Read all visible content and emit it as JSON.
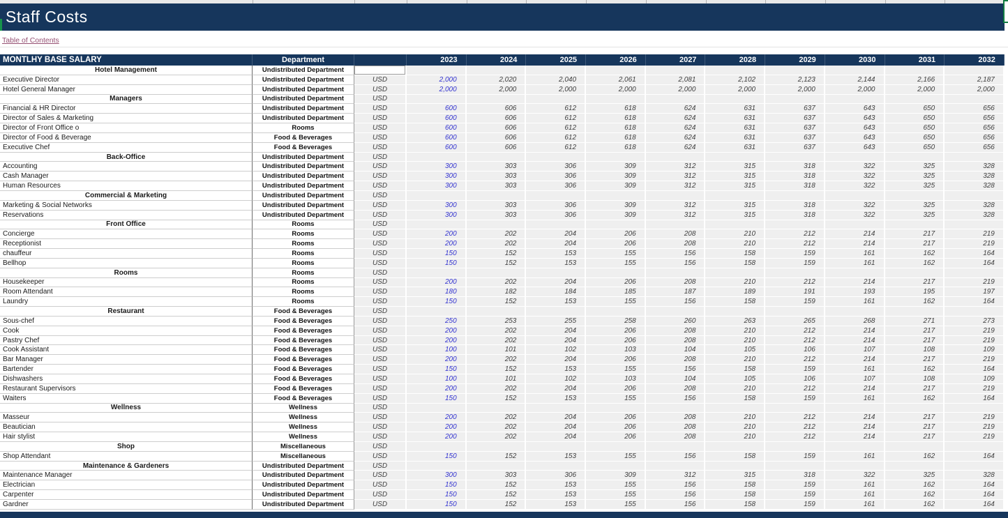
{
  "page_title": "Staff Costs",
  "toc_link_label": "Table of Contents",
  "colors": {
    "header_navy": "#16365c",
    "followed_link": "#954f72",
    "input_blue": "#3434d0",
    "cell_fill": "#efefef",
    "selection_green": "#107c41"
  },
  "table": {
    "title": "MONTLHY BASE SALARY",
    "department_header": "Department",
    "years": [
      "2023",
      "2024",
      "2025",
      "2026",
      "2027",
      "2028",
      "2029",
      "2030",
      "2031",
      "2032"
    ],
    "currency_label": "USD",
    "series": {
      "s2000g": [
        "2,000",
        "2,020",
        "2,040",
        "2,061",
        "2,081",
        "2,102",
        "2,123",
        "2,144",
        "2,166",
        "2,187"
      ],
      "s2000f": [
        "2,000",
        "2,000",
        "2,000",
        "2,000",
        "2,000",
        "2,000",
        "2,000",
        "2,000",
        "2,000",
        "2,000"
      ],
      "s600": [
        "600",
        "606",
        "612",
        "618",
        "624",
        "631",
        "637",
        "643",
        "650",
        "656"
      ],
      "s300": [
        "300",
        "303",
        "306",
        "309",
        "312",
        "315",
        "318",
        "322",
        "325",
        "328"
      ],
      "s250": [
        "250",
        "253",
        "255",
        "258",
        "260",
        "263",
        "265",
        "268",
        "271",
        "273"
      ],
      "s200": [
        "200",
        "202",
        "204",
        "206",
        "208",
        "210",
        "212",
        "214",
        "217",
        "219"
      ],
      "s180": [
        "180",
        "182",
        "184",
        "185",
        "187",
        "189",
        "191",
        "193",
        "195",
        "197"
      ],
      "s150": [
        "150",
        "152",
        "153",
        "155",
        "156",
        "158",
        "159",
        "161",
        "162",
        "164"
      ],
      "s100": [
        "100",
        "101",
        "102",
        "103",
        "104",
        "105",
        "106",
        "107",
        "108",
        "109"
      ]
    },
    "rows": [
      {
        "type": "category",
        "label": "Hotel Management",
        "department": "Undistributed Department",
        "currency": "",
        "series": null
      },
      {
        "type": "item",
        "label": "Executive Director",
        "department": "Undistributed Department",
        "currency": "USD",
        "series": "s2000g"
      },
      {
        "type": "item",
        "label": "Hotel General Manager",
        "department": "Undistributed Department",
        "currency": "USD",
        "series": "s2000f"
      },
      {
        "type": "category",
        "label": "Managers",
        "department": "Undistributed Department",
        "currency": "USD",
        "series": null
      },
      {
        "type": "item",
        "label": "Financial & HR Director",
        "department": "Undistributed Department",
        "currency": "USD",
        "series": "s600"
      },
      {
        "type": "item",
        "label": "Director of Sales & Marketing",
        "department": "Undistributed Department",
        "currency": "USD",
        "series": "s600"
      },
      {
        "type": "item",
        "label": "Director of Front Office o",
        "department": "Rooms",
        "currency": "USD",
        "series": "s600"
      },
      {
        "type": "item",
        "label": "Director of Food & Beverage",
        "department": "Food & Beverages",
        "currency": "USD",
        "series": "s600"
      },
      {
        "type": "item",
        "label": "Executive Chef",
        "department": "Food & Beverages",
        "currency": "USD",
        "series": "s600"
      },
      {
        "type": "category",
        "label": "Back-Office",
        "department": "Undistributed Department",
        "currency": "USD",
        "series": null
      },
      {
        "type": "item",
        "label": "Accounting",
        "department": "Undistributed Department",
        "currency": "USD",
        "series": "s300"
      },
      {
        "type": "item",
        "label": "Cash Manager",
        "department": "Undistributed Department",
        "currency": "USD",
        "series": "s300"
      },
      {
        "type": "item",
        "label": "Human Resources",
        "department": "Undistributed Department",
        "currency": "USD",
        "series": "s300"
      },
      {
        "type": "category",
        "label": "Commercial & Marketing",
        "department": "Undistributed Department",
        "currency": "USD",
        "series": null
      },
      {
        "type": "item",
        "label": "Marketing & Social Networks",
        "department": "Undistributed Department",
        "currency": "USD",
        "series": "s300"
      },
      {
        "type": "item",
        "label": "Reservations",
        "department": "Undistributed Department",
        "currency": "USD",
        "series": "s300"
      },
      {
        "type": "category",
        "label": "Front Office",
        "department": "Rooms",
        "currency": "USD",
        "series": null
      },
      {
        "type": "item",
        "label": "Concierge",
        "department": "Rooms",
        "currency": "USD",
        "series": "s200"
      },
      {
        "type": "item",
        "label": "Receptionist",
        "department": "Rooms",
        "currency": "USD",
        "series": "s200"
      },
      {
        "type": "item",
        "label": "chauffeur",
        "department": "Rooms",
        "currency": "USD",
        "series": "s150"
      },
      {
        "type": "item",
        "label": "Bellhop",
        "department": "Rooms",
        "currency": "USD",
        "series": "s150"
      },
      {
        "type": "category",
        "label": "Rooms",
        "department": "Rooms",
        "currency": "USD",
        "series": null
      },
      {
        "type": "item",
        "label": "Housekeeper",
        "department": "Rooms",
        "currency": "USD",
        "series": "s200"
      },
      {
        "type": "item",
        "label": "Room Attendant",
        "department": "Rooms",
        "currency": "USD",
        "series": "s180"
      },
      {
        "type": "item",
        "label": "Laundry",
        "department": "Rooms",
        "currency": "USD",
        "series": "s150"
      },
      {
        "type": "category",
        "label": "Restaurant",
        "department": "Food & Beverages",
        "currency": "USD",
        "series": null
      },
      {
        "type": "item",
        "label": "Sous-chef",
        "department": "Food & Beverages",
        "currency": "USD",
        "series": "s250"
      },
      {
        "type": "item",
        "label": "Cook",
        "department": "Food & Beverages",
        "currency": "USD",
        "series": "s200"
      },
      {
        "type": "item",
        "label": "Pastry Chef",
        "department": "Food & Beverages",
        "currency": "USD",
        "series": "s200"
      },
      {
        "type": "item",
        "label": "Cook Assistant",
        "department": "Food & Beverages",
        "currency": "USD",
        "series": "s100"
      },
      {
        "type": "item",
        "label": "Bar Manager",
        "department": "Food & Beverages",
        "currency": "USD",
        "series": "s200"
      },
      {
        "type": "item",
        "label": "Bartender",
        "department": "Food & Beverages",
        "currency": "USD",
        "series": "s150"
      },
      {
        "type": "item",
        "label": "Dishwashers",
        "department": "Food & Beverages",
        "currency": "USD",
        "series": "s100"
      },
      {
        "type": "item",
        "label": "Restaurant Supervisors",
        "department": "Food & Beverages",
        "currency": "USD",
        "series": "s200"
      },
      {
        "type": "item",
        "label": "Waiters",
        "department": "Food & Beverages",
        "currency": "USD",
        "series": "s150"
      },
      {
        "type": "category",
        "label": "Wellness",
        "department": "Wellness",
        "currency": "USD",
        "series": null
      },
      {
        "type": "item",
        "label": "Masseur",
        "department": "Wellness",
        "currency": "USD",
        "series": "s200"
      },
      {
        "type": "item",
        "label": "Beautician",
        "department": "Wellness",
        "currency": "USD",
        "series": "s200"
      },
      {
        "type": "item",
        "label": "Hair stylist",
        "department": "Wellness",
        "currency": "USD",
        "series": "s200"
      },
      {
        "type": "category",
        "label": "Shop",
        "department": "Miscellaneous",
        "currency": "USD",
        "series": null
      },
      {
        "type": "item",
        "label": "Shop Attendant",
        "department": "Miscellaneous",
        "currency": "USD",
        "series": "s150"
      },
      {
        "type": "category",
        "label": "Maintenance & Gardeners",
        "department": "Undistributed Department",
        "currency": "USD",
        "series": null
      },
      {
        "type": "item",
        "label": "Maintenance Manager",
        "department": "Undistributed Department",
        "currency": "USD",
        "series": "s300"
      },
      {
        "type": "item",
        "label": "Electrician",
        "department": "Undistributed Department",
        "currency": "USD",
        "series": "s150"
      },
      {
        "type": "item",
        "label": "Carpenter",
        "department": "Undistributed Department",
        "currency": "USD",
        "series": "s150"
      },
      {
        "type": "item",
        "label": "Gardner",
        "department": "Undistributed Department",
        "currency": "USD",
        "series": "s150"
      }
    ]
  }
}
